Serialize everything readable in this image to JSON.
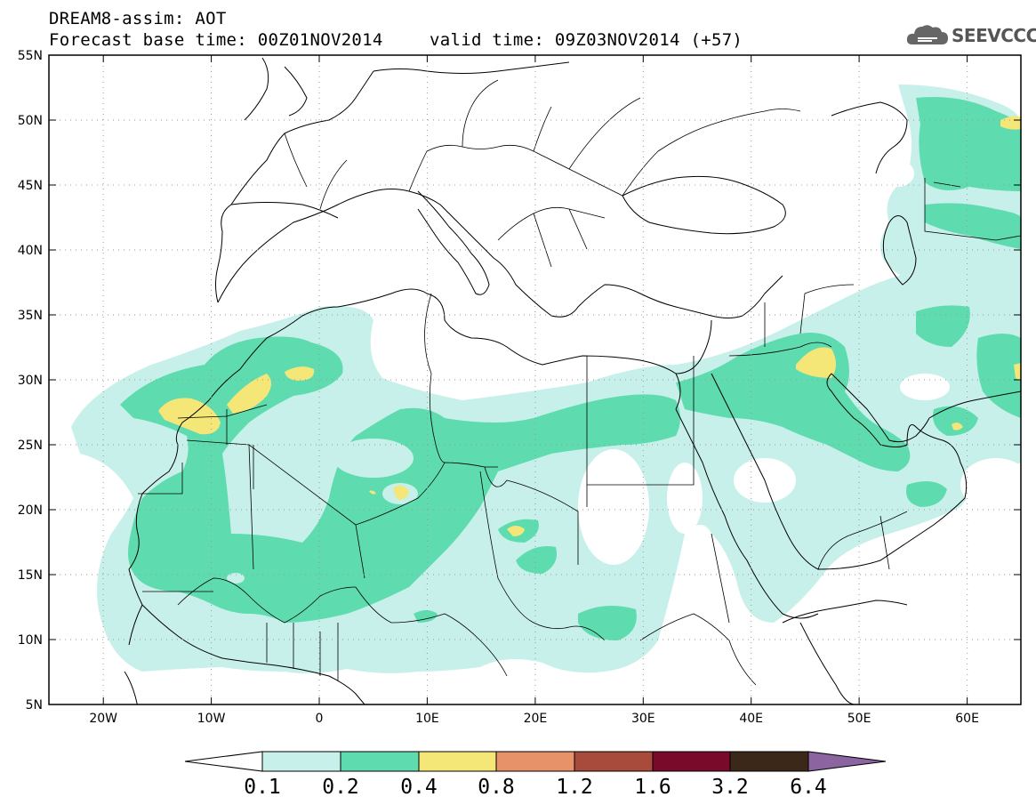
{
  "header": {
    "title": "DREAM8-assim: AOT",
    "base_time": "Forecast base time: 00Z01NOV2014",
    "valid_time": "valid time: 09Z03NOV2014 (+57)"
  },
  "logo": {
    "text": "SEEVCCC",
    "icon": "cloud-icon"
  },
  "map": {
    "projection": "lat-lon",
    "lon_range": [
      -25,
      65
    ],
    "lat_range": [
      5,
      55
    ],
    "lon_ticks": [
      "20W",
      "10W",
      "0",
      "10E",
      "20E",
      "30E",
      "40E",
      "50E",
      "60E"
    ],
    "lat_ticks": [
      "55N",
      "50N",
      "45N",
      "40N",
      "35N",
      "30N",
      "25N",
      "20N",
      "15N",
      "10N",
      "5N"
    ],
    "grid": "dotted"
  },
  "colorbar": {
    "levels": [
      "0.1",
      "0.2",
      "0.4",
      "0.8",
      "1.2",
      "1.6",
      "3.2",
      "6.4"
    ],
    "colors": [
      "#ffffff",
      "#c8f0ea",
      "#5fdcaf",
      "#f5e678",
      "#e8926a",
      "#a84a3c",
      "#7a0a2a",
      "#3c2818",
      "#8c64a0"
    ]
  }
}
